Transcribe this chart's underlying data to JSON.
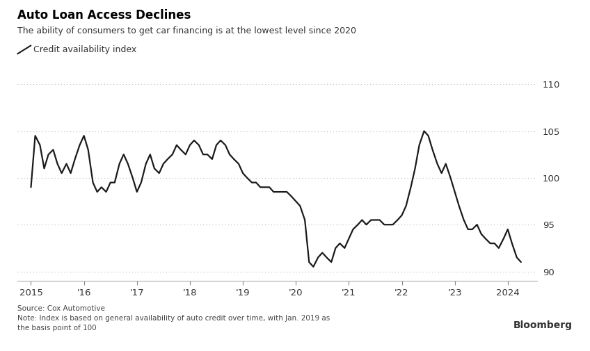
{
  "title": "Auto Loan Access Declines",
  "subtitle": "The ability of consumers to get car financing is at the lowest level since 2020",
  "legend_label": "Credit availability index",
  "source_text": "Source: Cox Automotive\nNote: Index is based on general availability of auto credit over time, with Jan. 2019 as\nthe basis point of 100",
  "bloomberg_label": "Bloomberg",
  "background_color": "#ffffff",
  "line_color": "#1a1a1a",
  "grid_color": "#bbbbbb",
  "ylim": [
    89.0,
    111.5
  ],
  "yticks": [
    90,
    95,
    100,
    105,
    110
  ],
  "xtick_positions": [
    2015,
    2016,
    2017,
    2018,
    2019,
    2020,
    2021,
    2022,
    2023,
    2024
  ],
  "xtick_labels": [
    "2015",
    "'16",
    "'17",
    "'18",
    "'19",
    "'20",
    "'21",
    "'22",
    "'23",
    "2024"
  ],
  "xlim": [
    2014.75,
    2024.55
  ],
  "dates": [
    2015.0,
    2015.08,
    2015.17,
    2015.25,
    2015.33,
    2015.42,
    2015.5,
    2015.58,
    2015.67,
    2015.75,
    2015.83,
    2015.92,
    2016.0,
    2016.08,
    2016.17,
    2016.25,
    2016.33,
    2016.42,
    2016.5,
    2016.58,
    2016.67,
    2016.75,
    2016.83,
    2016.92,
    2017.0,
    2017.08,
    2017.17,
    2017.25,
    2017.33,
    2017.42,
    2017.5,
    2017.58,
    2017.67,
    2017.75,
    2017.83,
    2017.92,
    2018.0,
    2018.08,
    2018.17,
    2018.25,
    2018.33,
    2018.42,
    2018.5,
    2018.58,
    2018.67,
    2018.75,
    2018.83,
    2018.92,
    2019.0,
    2019.08,
    2019.17,
    2019.25,
    2019.33,
    2019.42,
    2019.5,
    2019.58,
    2019.67,
    2019.75,
    2019.83,
    2019.92,
    2020.0,
    2020.08,
    2020.17,
    2020.25,
    2020.33,
    2020.42,
    2020.5,
    2020.58,
    2020.67,
    2020.75,
    2020.83,
    2020.92,
    2021.0,
    2021.08,
    2021.17,
    2021.25,
    2021.33,
    2021.42,
    2021.5,
    2021.58,
    2021.67,
    2021.75,
    2021.83,
    2021.92,
    2022.0,
    2022.08,
    2022.17,
    2022.25,
    2022.33,
    2022.42,
    2022.5,
    2022.58,
    2022.67,
    2022.75,
    2022.83,
    2022.92,
    2023.0,
    2023.08,
    2023.17,
    2023.25,
    2023.33,
    2023.42,
    2023.5,
    2023.58,
    2023.67,
    2023.75,
    2023.83,
    2023.92,
    2024.0,
    2024.08,
    2024.17,
    2024.25
  ],
  "values": [
    99.0,
    104.5,
    103.5,
    101.0,
    102.5,
    103.0,
    101.5,
    100.5,
    101.5,
    100.5,
    102.0,
    103.5,
    104.5,
    103.0,
    99.5,
    98.5,
    99.0,
    98.5,
    99.5,
    99.5,
    101.5,
    102.5,
    101.5,
    100.0,
    98.5,
    99.5,
    101.5,
    102.5,
    101.0,
    100.5,
    101.5,
    102.0,
    102.5,
    103.5,
    103.0,
    102.5,
    103.5,
    104.0,
    103.5,
    102.5,
    102.5,
    102.0,
    103.5,
    104.0,
    103.5,
    102.5,
    102.0,
    101.5,
    100.5,
    100.0,
    99.5,
    99.5,
    99.0,
    99.0,
    99.0,
    98.5,
    98.5,
    98.5,
    98.5,
    98.0,
    97.5,
    97.0,
    95.5,
    91.0,
    90.5,
    91.5,
    92.0,
    91.5,
    91.0,
    92.5,
    93.0,
    92.5,
    93.5,
    94.5,
    95.0,
    95.5,
    95.0,
    95.5,
    95.5,
    95.5,
    95.0,
    95.0,
    95.0,
    95.5,
    96.0,
    97.0,
    99.0,
    101.0,
    103.5,
    105.0,
    104.5,
    103.0,
    101.5,
    100.5,
    101.5,
    100.0,
    98.5,
    97.0,
    95.5,
    94.5,
    94.5,
    95.0,
    94.0,
    93.5,
    93.0,
    93.0,
    92.5,
    93.5,
    94.5,
    93.0,
    91.5,
    91.0
  ]
}
